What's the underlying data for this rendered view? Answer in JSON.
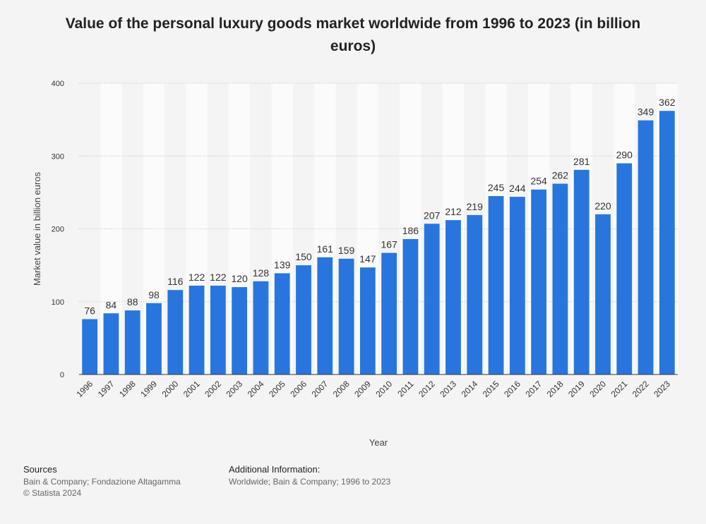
{
  "chart_data": {
    "type": "bar",
    "title": "Value of the personal luxury goods market worldwide from 1996 to 2023 (in billion euros)",
    "xlabel": "Year",
    "ylabel": "Market value in billion euros",
    "ylim": [
      0,
      400
    ],
    "yticks": [
      0,
      100,
      200,
      300,
      400
    ],
    "grid": true,
    "categories": [
      "1996",
      "1997",
      "1998",
      "1999",
      "2000",
      "2001",
      "2002",
      "2003",
      "2004",
      "2005",
      "2006",
      "2007",
      "2008",
      "2009",
      "2010",
      "2011",
      "2012",
      "2013",
      "2014",
      "2015",
      "2016",
      "2017",
      "2018",
      "2019",
      "2020",
      "2021",
      "2022",
      "2023"
    ],
    "values": [
      76,
      84,
      88,
      98,
      116,
      122,
      122,
      120,
      128,
      139,
      150,
      161,
      159,
      147,
      167,
      186,
      207,
      212,
      219,
      245,
      244,
      254,
      262,
      281,
      220,
      290,
      349,
      362
    ],
    "bar_color": "#2876dd"
  },
  "footer": {
    "sources_heading": "Sources",
    "sources_text": "Bain & Company; Fondazione Altagamma",
    "copyright": "© Statista 2024",
    "additional_heading": "Additional Information:",
    "additional_text": "Worldwide; Bain & Company; 1996 to 2023"
  }
}
